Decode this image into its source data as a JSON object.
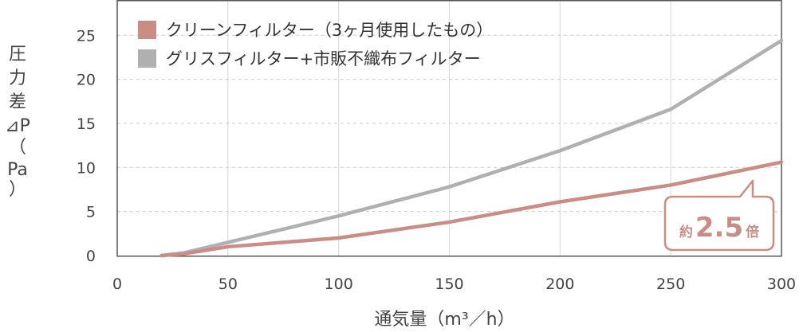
{
  "chart_data": {
    "type": "line",
    "xlabel": "通気量（m³／h）",
    "ylabel_lines": [
      "圧",
      "力",
      "差",
      "⊿P",
      "（",
      "Pa",
      "）"
    ],
    "xlim": [
      0,
      300
    ],
    "ylim": [
      0,
      29
    ],
    "x_ticks": [
      "0",
      "50",
      "100",
      "150",
      "200",
      "250",
      "300"
    ],
    "y_ticks": [
      "0",
      "5",
      "10",
      "15",
      "20",
      "25"
    ],
    "grid": true,
    "legend_position": "top-left",
    "series": [
      {
        "name": "クリーンフィルター（3ヶ月使用したもの）",
        "color": "#c98d86",
        "x": [
          20,
          30,
          50,
          100,
          150,
          200,
          250,
          300
        ],
        "y": [
          0,
          0.2,
          1.0,
          2.0,
          3.8,
          6.1,
          8.0,
          10.6
        ]
      },
      {
        "name": "グリスフィルター+市販不織布フィルター",
        "color": "#b0b0b0",
        "x": [
          20,
          30,
          50,
          100,
          150,
          200,
          250,
          300
        ],
        "y": [
          0,
          0.3,
          1.5,
          4.5,
          7.8,
          11.9,
          16.6,
          24.4
        ]
      }
    ],
    "annotation": {
      "prefix": "約",
      "value": "2.5",
      "suffix": "倍",
      "color": "#c98d86"
    }
  }
}
